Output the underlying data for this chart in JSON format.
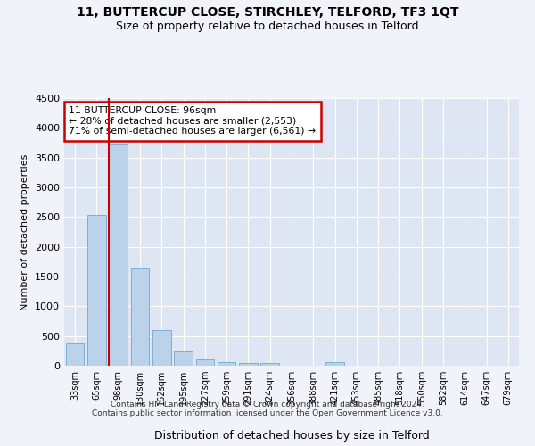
{
  "title": "11, BUTTERCUP CLOSE, STIRCHLEY, TELFORD, TF3 1QT",
  "subtitle": "Size of property relative to detached houses in Telford",
  "xlabel": "Distribution of detached houses by size in Telford",
  "ylabel": "Number of detached properties",
  "categories": [
    "33sqm",
    "65sqm",
    "98sqm",
    "130sqm",
    "162sqm",
    "195sqm",
    "227sqm",
    "259sqm",
    "291sqm",
    "324sqm",
    "356sqm",
    "388sqm",
    "421sqm",
    "453sqm",
    "485sqm",
    "518sqm",
    "550sqm",
    "582sqm",
    "614sqm",
    "647sqm",
    "679sqm"
  ],
  "values": [
    380,
    2530,
    3730,
    1630,
    600,
    240,
    110,
    65,
    50,
    50,
    0,
    0,
    55,
    0,
    0,
    0,
    0,
    0,
    0,
    0,
    0
  ],
  "bar_color": "#bad3ea",
  "bar_edge_color": "#7aafd4",
  "vline_color": "#cc0000",
  "annotation_text": "11 BUTTERCUP CLOSE: 96sqm\n← 28% of detached houses are smaller (2,553)\n71% of semi-detached houses are larger (6,561) →",
  "annotation_box_color": "#cc0000",
  "ylim": [
    0,
    4500
  ],
  "yticks": [
    0,
    500,
    1000,
    1500,
    2000,
    2500,
    3000,
    3500,
    4000,
    4500
  ],
  "fig_background": "#f0f4fa",
  "ax_background": "#dde6f2",
  "grid_color": "#ffffff",
  "footer_line1": "Contains HM Land Registry data © Crown copyright and database right 2024.",
  "footer_line2": "Contains public sector information licensed under the Open Government Licence v3.0."
}
